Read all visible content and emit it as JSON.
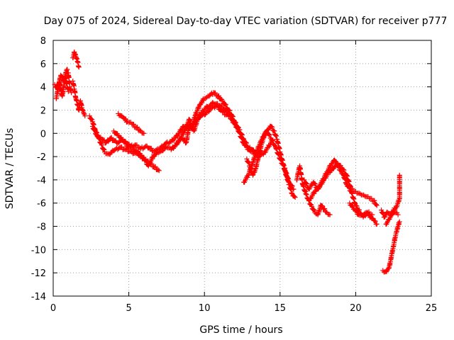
{
  "chart_data": {
    "type": "scatter",
    "title": "Day 075 of 2024, Sidereal Day-to-day VTEC variation (SDTVAR) for receiver p777",
    "xlabel": "GPS time / hours",
    "ylabel": "SDTVAR / TECUs",
    "xlim": [
      0,
      25
    ],
    "ylim": [
      -14,
      8
    ],
    "xticks": [
      0,
      5,
      10,
      15,
      20,
      25
    ],
    "yticks": [
      -14,
      -12,
      -10,
      -8,
      -6,
      -4,
      -2,
      0,
      2,
      4,
      6,
      8
    ],
    "grid": true,
    "marker": "+",
    "color": "#ff0000",
    "tracks": [
      {
        "name": "track-1",
        "points": [
          [
            0.1,
            4.2
          ],
          [
            0.3,
            3.8
          ],
          [
            0.5,
            5.0
          ],
          [
            0.7,
            4.5
          ],
          [
            0.9,
            5.5
          ],
          [
            1.0,
            5.2
          ],
          [
            1.1,
            4.0
          ],
          [
            1.2,
            3.5
          ]
        ]
      },
      {
        "name": "track-2",
        "points": [
          [
            0.2,
            3.0
          ],
          [
            0.4,
            4.4
          ],
          [
            0.6,
            3.2
          ],
          [
            0.8,
            4.8
          ],
          [
            1.0,
            3.6
          ]
        ]
      },
      {
        "name": "track-3",
        "points": [
          [
            1.3,
            6.5
          ],
          [
            1.4,
            7.0
          ],
          [
            1.5,
            6.6
          ],
          [
            1.6,
            6.2
          ],
          [
            1.7,
            5.7
          ]
        ]
      },
      {
        "name": "track-4",
        "points": [
          [
            1.3,
            4.5
          ],
          [
            1.4,
            3.8
          ],
          [
            1.5,
            3.0
          ],
          [
            1.6,
            2.5
          ],
          [
            1.7,
            2.0
          ],
          [
            1.8,
            2.8
          ],
          [
            1.9,
            2.2
          ],
          [
            2.0,
            1.8
          ],
          [
            2.1,
            1.5
          ]
        ]
      },
      {
        "name": "track-5",
        "points": [
          [
            2.4,
            1.5
          ],
          [
            2.6,
            1.0
          ],
          [
            2.8,
            0.2
          ],
          [
            3.0,
            -0.4
          ],
          [
            3.2,
            -1.0
          ],
          [
            3.4,
            -1.6
          ],
          [
            3.7,
            -1.8
          ],
          [
            4.0,
            -1.5
          ],
          [
            4.4,
            -1.2
          ],
          [
            4.8,
            -1.4
          ],
          [
            5.2,
            -1.6
          ],
          [
            5.6,
            -1.8
          ],
          [
            6.0,
            -2.2
          ],
          [
            6.3,
            -2.8
          ],
          [
            6.6,
            -2.0
          ],
          [
            6.9,
            -1.6
          ],
          [
            7.2,
            -1.5
          ],
          [
            7.5,
            -1.2
          ],
          [
            7.8,
            -1.4
          ],
          [
            8.1,
            -1.0
          ],
          [
            8.4,
            -0.5
          ],
          [
            8.7,
            0.3
          ],
          [
            9.0,
            1.2
          ],
          [
            9.2,
            0.6
          ],
          [
            9.4,
            1.6
          ],
          [
            9.7,
            2.5
          ],
          [
            10.0,
            3.0
          ],
          [
            10.3,
            3.2
          ],
          [
            10.6,
            3.5
          ],
          [
            10.9,
            3.2
          ],
          [
            11.2,
            2.8
          ],
          [
            11.5,
            2.2
          ],
          [
            11.8,
            1.6
          ],
          [
            12.0,
            1.0
          ],
          [
            12.3,
            0.3
          ],
          [
            12.6,
            -0.5
          ],
          [
            12.9,
            -1.2
          ]
        ]
      },
      {
        "name": "track-6",
        "points": [
          [
            2.6,
            0.6
          ],
          [
            2.9,
            -0.2
          ],
          [
            3.2,
            -0.5
          ],
          [
            3.5,
            -0.8
          ],
          [
            3.8,
            -0.4
          ],
          [
            4.2,
            -0.8
          ],
          [
            4.6,
            -0.6
          ],
          [
            5.0,
            -1.2
          ],
          [
            5.4,
            -1.0
          ],
          [
            5.8,
            -1.3
          ],
          [
            6.2,
            -1.1
          ],
          [
            6.6,
            -1.5
          ],
          [
            7.0,
            -1.4
          ],
          [
            7.4,
            -0.9
          ],
          [
            7.8,
            -0.7
          ],
          [
            8.2,
            -0.2
          ],
          [
            8.6,
            0.6
          ],
          [
            9.0,
            0.4
          ],
          [
            9.4,
            1.0
          ],
          [
            9.8,
            1.8
          ],
          [
            10.2,
            2.3
          ],
          [
            10.6,
            2.6
          ],
          [
            11.0,
            2.4
          ],
          [
            11.4,
            2.0
          ],
          [
            11.8,
            1.2
          ],
          [
            12.2,
            0.4
          ],
          [
            12.6,
            -0.9
          ],
          [
            13.0,
            -1.5
          ],
          [
            13.4,
            -1.8
          ],
          [
            13.7,
            -1.5
          ]
        ]
      },
      {
        "name": "track-7",
        "points": [
          [
            4.3,
            1.7
          ],
          [
            4.6,
            1.4
          ],
          [
            4.9,
            1.0
          ],
          [
            5.2,
            0.8
          ],
          [
            5.5,
            0.5
          ],
          [
            5.8,
            0.2
          ],
          [
            6.0,
            0.0
          ]
        ]
      },
      {
        "name": "track-8",
        "points": [
          [
            4.0,
            0.2
          ],
          [
            4.3,
            -0.2
          ],
          [
            4.6,
            -0.6
          ],
          [
            4.9,
            -0.9
          ],
          [
            5.2,
            -1.2
          ],
          [
            5.5,
            -1.5
          ],
          [
            5.8,
            -1.9
          ],
          [
            6.1,
            -2.3
          ],
          [
            6.4,
            -2.6
          ],
          [
            6.7,
            -2.9
          ],
          [
            7.0,
            -3.2
          ]
        ]
      },
      {
        "name": "track-9",
        "points": [
          [
            8.2,
            -0.8
          ],
          [
            8.5,
            -0.4
          ],
          [
            8.8,
            -0.8
          ],
          [
            9.0,
            0.8
          ],
          [
            9.3,
            0.2
          ],
          [
            9.6,
            1.4
          ],
          [
            10.0,
            1.6
          ],
          [
            10.4,
            2.1
          ],
          [
            10.8,
            2.4
          ],
          [
            11.2,
            1.8
          ],
          [
            11.6,
            1.5
          ]
        ]
      },
      {
        "name": "track-10",
        "points": [
          [
            12.8,
            -2.2
          ],
          [
            13.0,
            -2.8
          ],
          [
            13.2,
            -3.6
          ],
          [
            13.4,
            -3.0
          ],
          [
            13.6,
            -1.8
          ],
          [
            13.8,
            -0.8
          ],
          [
            14.0,
            0.0
          ],
          [
            14.2,
            0.3
          ],
          [
            14.4,
            0.6
          ],
          [
            14.6,
            0.2
          ],
          [
            14.8,
            -0.5
          ],
          [
            15.0,
            -1.6
          ],
          [
            15.2,
            -2.6
          ],
          [
            15.4,
            -3.6
          ],
          [
            15.6,
            -4.4
          ],
          [
            15.8,
            -5.2
          ],
          [
            16.0,
            -5.5
          ]
        ]
      },
      {
        "name": "track-11",
        "points": [
          [
            12.6,
            -4.2
          ],
          [
            12.9,
            -3.6
          ],
          [
            13.2,
            -2.5
          ],
          [
            13.5,
            -1.4
          ],
          [
            13.8,
            -0.5
          ],
          [
            14.1,
            0.2
          ],
          [
            14.4,
            -0.4
          ],
          [
            14.7,
            -1.2
          ],
          [
            15.0,
            -2.2
          ],
          [
            15.3,
            -3.0
          ],
          [
            15.6,
            -4.2
          ],
          [
            15.9,
            -4.8
          ]
        ]
      },
      {
        "name": "track-12",
        "points": [
          [
            13.0,
            -1.2
          ],
          [
            13.3,
            -1.6
          ],
          [
            13.6,
            -2.0
          ],
          [
            13.9,
            -1.8
          ],
          [
            14.2,
            -1.2
          ],
          [
            14.5,
            -0.6
          ]
        ]
      },
      {
        "name": "track-13",
        "points": [
          [
            16.1,
            -4.0
          ],
          [
            16.3,
            -2.8
          ],
          [
            16.5,
            -4.4
          ],
          [
            16.7,
            -5.2
          ],
          [
            16.9,
            -5.8
          ],
          [
            17.1,
            -6.3
          ],
          [
            17.3,
            -6.8
          ],
          [
            17.5,
            -7.0
          ],
          [
            17.7,
            -6.2
          ],
          [
            17.9,
            -6.5
          ],
          [
            18.1,
            -6.8
          ],
          [
            18.3,
            -7.0
          ]
        ]
      },
      {
        "name": "track-14",
        "points": [
          [
            16.6,
            -4.0
          ],
          [
            16.9,
            -4.8
          ],
          [
            17.2,
            -4.2
          ],
          [
            17.5,
            -4.8
          ],
          [
            17.8,
            -4.1
          ],
          [
            18.1,
            -3.3
          ],
          [
            18.4,
            -2.6
          ],
          [
            18.6,
            -2.3
          ],
          [
            18.8,
            -2.8
          ],
          [
            19.0,
            -3.2
          ],
          [
            19.2,
            -3.6
          ],
          [
            19.4,
            -4.4
          ],
          [
            19.7,
            -5.0
          ],
          [
            20.0,
            -6.2
          ],
          [
            20.2,
            -6.6
          ],
          [
            20.4,
            -7.0
          ],
          [
            20.7,
            -6.8
          ],
          [
            21.0,
            -7.2
          ],
          [
            21.2,
            -7.5
          ],
          [
            21.4,
            -7.8
          ]
        ]
      },
      {
        "name": "track-15",
        "points": [
          [
            17.0,
            -5.6
          ],
          [
            17.3,
            -5.0
          ],
          [
            17.6,
            -4.6
          ],
          [
            17.9,
            -4.0
          ],
          [
            18.2,
            -3.4
          ],
          [
            18.5,
            -3.0
          ],
          [
            18.8,
            -2.6
          ],
          [
            19.1,
            -3.0
          ],
          [
            19.4,
            -3.6
          ],
          [
            19.7,
            -4.8
          ],
          [
            20.0,
            -5.0
          ],
          [
            20.3,
            -5.2
          ],
          [
            20.6,
            -5.4
          ],
          [
            20.9,
            -5.6
          ],
          [
            21.2,
            -5.8
          ],
          [
            21.4,
            -6.2
          ]
        ]
      },
      {
        "name": "track-16",
        "points": [
          [
            19.6,
            -6.0
          ],
          [
            19.9,
            -6.5
          ],
          [
            20.2,
            -7.0
          ],
          [
            20.5,
            -7.2
          ],
          [
            20.8,
            -6.8
          ],
          [
            21.1,
            -7.0
          ]
        ]
      },
      {
        "name": "track-17",
        "points": [
          [
            21.7,
            -6.6
          ],
          [
            21.9,
            -7.2
          ],
          [
            22.1,
            -6.8
          ],
          [
            22.3,
            -7.0
          ],
          [
            22.5,
            -6.6
          ],
          [
            22.7,
            -6.3
          ],
          [
            22.9,
            -5.6
          ],
          [
            22.9,
            -3.6
          ]
        ]
      },
      {
        "name": "track-18",
        "points": [
          [
            21.8,
            -11.8
          ],
          [
            22.0,
            -11.9
          ],
          [
            22.2,
            -11.6
          ],
          [
            22.3,
            -11.0
          ],
          [
            22.4,
            -10.3
          ],
          [
            22.5,
            -9.7
          ],
          [
            22.6,
            -9.0
          ],
          [
            22.7,
            -8.5
          ],
          [
            22.8,
            -8.0
          ],
          [
            22.9,
            -7.6
          ]
        ]
      },
      {
        "name": "track-19",
        "points": [
          [
            22.0,
            -7.8
          ],
          [
            22.2,
            -7.4
          ],
          [
            22.4,
            -7.0
          ],
          [
            22.6,
            -6.8
          ],
          [
            22.8,
            -7.0
          ]
        ]
      }
    ]
  }
}
